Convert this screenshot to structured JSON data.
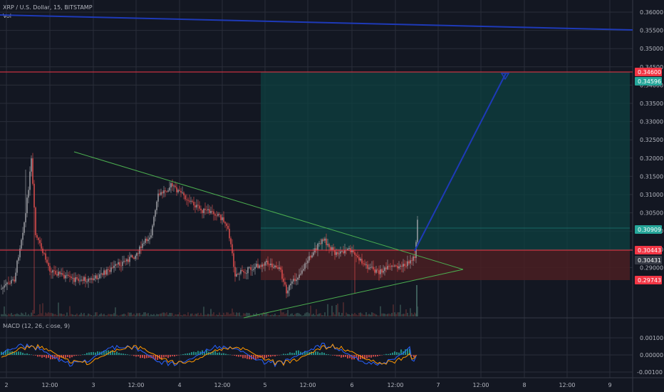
{
  "header": {
    "symbol_line": "XRP / U.S. Dollar, 15, BITSTAMP",
    "volume_label": "Vol",
    "macd_label": "MACD (12, 26, close, 9)"
  },
  "colors": {
    "background": "#131722",
    "grid": "#2a2e39",
    "candle_up": "#a7a8ad",
    "candle_down": "#ef5350",
    "macd_line": "#2962ff",
    "signal_line": "#ff9800",
    "hist_pos": "#26a69a",
    "hist_neg": "#ef5350",
    "trend_lines": "#4caf50",
    "projection": "#1e3ab8",
    "resistance": "#f23645",
    "target_zone": "#0e4040",
    "stop_zone": "#4a1e22"
  },
  "price_axis": {
    "ticks": [
      "0.36000",
      "0.35500",
      "0.35000",
      "0.34500",
      "0.34000",
      "0.33500",
      "0.33000",
      "0.32500",
      "0.32000",
      "0.31500",
      "0.31000",
      "0.30500",
      "0.30000",
      "0.29500",
      "0.29000"
    ],
    "tags": [
      {
        "text": "0.34600",
        "color": "#f23645"
      },
      {
        "text": "0.34596",
        "color": "#26a69a"
      },
      {
        "text": "0.30909",
        "color": "#26a69a"
      },
      {
        "text": "0.30443",
        "color": "#f23645"
      },
      {
        "text": "0.30431",
        "color": "#363a45"
      },
      {
        "text": "0.29743",
        "color": "#f23645"
      }
    ]
  },
  "macd_axis": {
    "ticks": [
      "0.00100",
      "0.00000",
      "-0.00100"
    ]
  },
  "time_axis": {
    "ticks": [
      "2",
      "12:00",
      "3",
      "12:00",
      "4",
      "12:00",
      "5",
      "12:00",
      "6",
      "12:00",
      "7",
      "12:00",
      "8",
      "12:00",
      "9"
    ]
  }
}
